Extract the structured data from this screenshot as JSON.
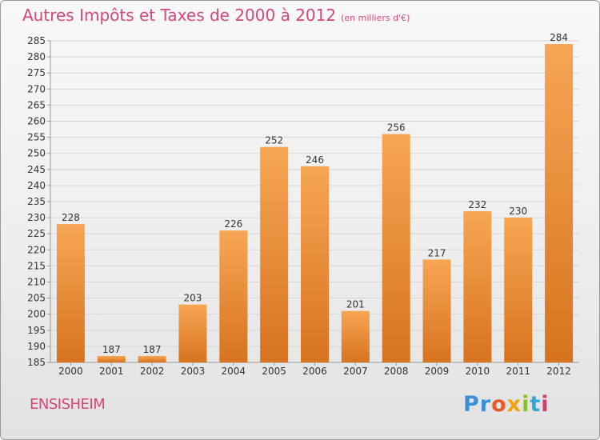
{
  "title": "Autres Impôts et Taxes de 2000 à 2012",
  "title_unit": "(en milliers d'€)",
  "commune": "ENSISHEIM",
  "logo": [
    "Pr",
    "o",
    "x",
    "i",
    "t",
    "i"
  ],
  "colors": {
    "bar_light": "#f7a654",
    "bar_dark": "#d7731e",
    "title": "#d1487a",
    "grid": "#d6d6d6"
  },
  "chart_data": {
    "type": "bar",
    "title": "Autres Impôts et Taxes de 2000 à 2012",
    "xlabel": "",
    "ylabel": "",
    "categories": [
      "2000",
      "2001",
      "2002",
      "2003",
      "2004",
      "2005",
      "2006",
      "2007",
      "2008",
      "2009",
      "2010",
      "2011",
      "2012"
    ],
    "values": [
      228,
      187,
      187,
      203,
      226,
      252,
      246,
      201,
      256,
      217,
      232,
      230,
      284
    ],
    "ylim": [
      185,
      285
    ],
    "ytick_step": 5,
    "grid": true
  }
}
